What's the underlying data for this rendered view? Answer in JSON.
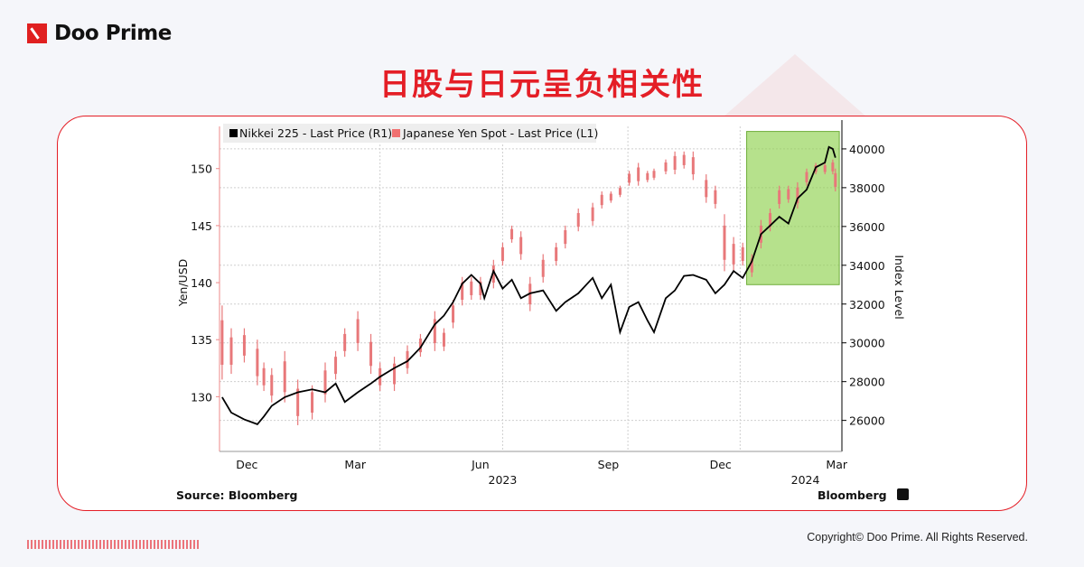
{
  "brand": {
    "name": "Doo Prime",
    "accent": "#e41e26"
  },
  "title": "日股与日元呈负相关性",
  "copyright": "Copyright© Doo Prime. All Rights Reserved.",
  "chart_data": {
    "type": "line",
    "title": "",
    "legend": {
      "placement": "top-left",
      "entries": [
        "Nikkei 225 - Last Price (R1)",
        "Japanese Yen Spot - Last Price (L1)"
      ]
    },
    "source": "Source: Bloomberg",
    "watermark": "Bloomberg",
    "grid": true,
    "x_axis": {
      "type": "date",
      "range": [
        "2022-11-17",
        "2024-03-08"
      ],
      "tick_labels": [
        {
          "label": "Dec",
          "date": "2022-12-08"
        },
        {
          "label": "Mar",
          "date": "2023-03-01"
        },
        {
          "label": "Jun",
          "date": "2023-06-05"
        },
        {
          "label": "Sep",
          "date": "2023-09-11"
        },
        {
          "label": "Dec",
          "date": "2023-12-06"
        },
        {
          "label": "Mar",
          "date": "2024-03-04"
        }
      ],
      "year_labels": [
        {
          "label": "2023",
          "date": "2023-06-22"
        },
        {
          "label": "2024",
          "date": "2024-02-09"
        }
      ],
      "gridline_dates": [
        "2023-03-20",
        "2023-06-22",
        "2023-09-26",
        "2023-12-21"
      ]
    },
    "y_left": {
      "label": "Yen/USD",
      "range": [
        125.2,
        153.7
      ],
      "ticks": [
        130,
        135,
        140,
        145,
        150
      ]
    },
    "y_right": {
      "label": "Index Level",
      "range": [
        24400,
        41160
      ],
      "ticks": [
        26000,
        28000,
        30000,
        32000,
        34000,
        36000,
        38000,
        40000
      ]
    },
    "highlight": {
      "from": "2023-12-26",
      "to": "2024-03-06",
      "y_right_range": [
        33000,
        40900
      ],
      "color": "#8fd14f"
    },
    "series": [
      {
        "name": "Nikkei 225 - Last Price (R1)",
        "axis": "right",
        "color": "#000000",
        "points": [
          [
            "2022-11-19",
            27200
          ],
          [
            "2022-11-26",
            26400
          ],
          [
            "2022-12-06",
            26050
          ],
          [
            "2022-12-16",
            25800
          ],
          [
            "2022-12-21",
            26200
          ],
          [
            "2022-12-27",
            26750
          ],
          [
            "2023-01-06",
            27200
          ],
          [
            "2023-01-16",
            27450
          ],
          [
            "2023-01-27",
            27600
          ],
          [
            "2023-02-06",
            27450
          ],
          [
            "2023-02-14",
            27900
          ],
          [
            "2023-02-21",
            26950
          ],
          [
            "2023-03-03",
            27450
          ],
          [
            "2023-03-13",
            27900
          ],
          [
            "2023-03-20",
            28250
          ],
          [
            "2023-03-31",
            28700
          ],
          [
            "2023-04-10",
            29050
          ],
          [
            "2023-04-20",
            29750
          ],
          [
            "2023-05-01",
            30950
          ],
          [
            "2023-05-08",
            31400
          ],
          [
            "2023-05-15",
            32100
          ],
          [
            "2023-05-22",
            33050
          ],
          [
            "2023-05-29",
            33500
          ],
          [
            "2023-06-05",
            33050
          ],
          [
            "2023-06-08",
            32300
          ],
          [
            "2023-06-15",
            33700
          ],
          [
            "2023-06-22",
            32800
          ],
          [
            "2023-06-29",
            33250
          ],
          [
            "2023-07-06",
            32300
          ],
          [
            "2023-07-13",
            32550
          ],
          [
            "2023-07-23",
            32700
          ],
          [
            "2023-08-02",
            31650
          ],
          [
            "2023-08-09",
            32100
          ],
          [
            "2023-08-19",
            32550
          ],
          [
            "2023-08-30",
            33350
          ],
          [
            "2023-09-06",
            32300
          ],
          [
            "2023-09-13",
            33000
          ],
          [
            "2023-09-20",
            30550
          ],
          [
            "2023-09-27",
            31850
          ],
          [
            "2023-10-04",
            32100
          ],
          [
            "2023-10-11",
            31150
          ],
          [
            "2023-10-16",
            30550
          ],
          [
            "2023-10-25",
            32300
          ],
          [
            "2023-11-01",
            32700
          ],
          [
            "2023-11-08",
            33450
          ],
          [
            "2023-11-15",
            33500
          ],
          [
            "2023-11-25",
            33250
          ],
          [
            "2023-12-02",
            32550
          ],
          [
            "2023-12-09",
            33000
          ],
          [
            "2023-12-16",
            33700
          ],
          [
            "2023-12-23",
            33350
          ],
          [
            "2023-12-30",
            34200
          ],
          [
            "2024-01-06",
            35600
          ],
          [
            "2024-01-13",
            36050
          ],
          [
            "2024-01-20",
            36500
          ],
          [
            "2024-01-27",
            36150
          ],
          [
            "2024-02-03",
            37450
          ],
          [
            "2024-02-10",
            37900
          ],
          [
            "2024-02-17",
            39050
          ],
          [
            "2024-02-24",
            39300
          ],
          [
            "2024-02-27",
            40100
          ],
          [
            "2024-03-01",
            40000
          ],
          [
            "2024-03-03",
            39550
          ]
        ]
      },
      {
        "name": "Japanese Yen Spot - Last Price (L1)",
        "axis": "left",
        "color": "#e8787a",
        "ranges_low_high": [
          [
            "2022-11-19",
            131.5,
            138
          ],
          [
            "2022-11-26",
            132,
            136
          ],
          [
            "2022-12-06",
            133,
            136
          ],
          [
            "2022-12-16",
            131,
            135
          ],
          [
            "2022-12-21",
            130.5,
            133
          ],
          [
            "2022-12-27",
            129.5,
            132.5
          ],
          [
            "2023-01-06",
            129.5,
            134
          ],
          [
            "2023-01-16",
            127.5,
            131.5
          ],
          [
            "2023-01-27",
            128,
            131
          ],
          [
            "2023-02-06",
            129.5,
            133
          ],
          [
            "2023-02-14",
            131.5,
            134
          ],
          [
            "2023-02-21",
            133.5,
            136
          ],
          [
            "2023-03-03",
            134,
            137.5
          ],
          [
            "2023-03-13",
            132,
            135.5
          ],
          [
            "2023-03-20",
            130.5,
            133
          ],
          [
            "2023-03-31",
            130.5,
            133.5
          ],
          [
            "2023-04-10",
            132,
            134.5
          ],
          [
            "2023-04-20",
            133.5,
            135.5
          ],
          [
            "2023-05-01",
            134,
            137.5
          ],
          [
            "2023-05-08",
            134,
            136
          ],
          [
            "2023-05-15",
            136,
            138.5
          ],
          [
            "2023-05-22",
            138,
            140.5
          ],
          [
            "2023-05-29",
            138.5,
            140.5
          ],
          [
            "2023-06-05",
            138.5,
            140.5
          ],
          [
            "2023-06-15",
            139.5,
            142
          ],
          [
            "2023-06-22",
            141.5,
            143.5
          ],
          [
            "2023-06-29",
            143.5,
            145
          ],
          [
            "2023-07-06",
            142,
            144.5
          ],
          [
            "2023-07-13",
            137.5,
            140.5
          ],
          [
            "2023-07-23",
            140,
            142.5
          ],
          [
            "2023-08-02",
            141.5,
            143.5
          ],
          [
            "2023-08-09",
            143,
            145
          ],
          [
            "2023-08-19",
            144.5,
            146.5
          ],
          [
            "2023-08-30",
            145,
            147
          ],
          [
            "2023-09-06",
            146.5,
            148
          ],
          [
            "2023-09-13",
            147,
            148
          ],
          [
            "2023-09-20",
            147.5,
            148.5
          ],
          [
            "2023-09-27",
            148.5,
            149.8
          ],
          [
            "2023-10-04",
            148.5,
            150.5
          ],
          [
            "2023-10-11",
            148.8,
            149.8
          ],
          [
            "2023-10-16",
            149,
            150
          ],
          [
            "2023-10-25",
            149.5,
            150.8
          ],
          [
            "2023-11-01",
            149.5,
            151.5
          ],
          [
            "2023-11-08",
            150,
            151.5
          ],
          [
            "2023-11-15",
            149,
            151.5
          ],
          [
            "2023-11-25",
            147,
            149.5
          ],
          [
            "2023-12-02",
            146.5,
            148.5
          ],
          [
            "2023-12-09",
            141,
            146
          ],
          [
            "2023-12-16",
            141,
            144
          ],
          [
            "2023-12-23",
            141.5,
            143.5
          ],
          [
            "2023-12-30",
            140.5,
            142.5
          ],
          [
            "2024-01-06",
            143,
            145.5
          ],
          [
            "2024-01-13",
            144.5,
            146.5
          ],
          [
            "2024-01-20",
            146.5,
            148.5
          ],
          [
            "2024-01-27",
            147,
            148.5
          ],
          [
            "2024-02-03",
            146.5,
            148.8
          ],
          [
            "2024-02-10",
            148.5,
            150
          ],
          [
            "2024-02-17",
            149.5,
            150.5
          ],
          [
            "2024-02-24",
            149.5,
            150.5
          ],
          [
            "2024-03-01",
            149.5,
            150.8
          ],
          [
            "2024-03-03",
            148,
            150
          ]
        ]
      }
    ]
  }
}
